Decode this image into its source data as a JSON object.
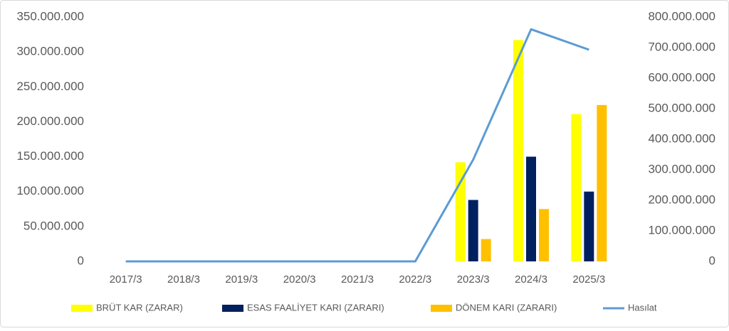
{
  "chart_data": {
    "type": "bar",
    "categories": [
      "2017/3",
      "2018/3",
      "2019/3",
      "2020/3",
      "2021/3",
      "2022/3",
      "2023/3",
      "2024/3",
      "2025/3"
    ],
    "series": [
      {
        "name": "BRÜT KAR (ZARAR)",
        "color": "#ffff00",
        "values": [
          0,
          0,
          0,
          0,
          0,
          0,
          142000000,
          317000000,
          211000000
        ]
      },
      {
        "name": "ESAS FAALİYET KARI (ZARARI)",
        "color": "#002060",
        "values": [
          0,
          0,
          0,
          0,
          0,
          0,
          88000000,
          150000000,
          100000000
        ]
      },
      {
        "name": "DÖNEM KARI (ZARARI)",
        "color": "#ffc000",
        "values": [
          0,
          0,
          0,
          0,
          0,
          0,
          32000000,
          75000000,
          224000000
        ]
      },
      {
        "name": "Hasılat",
        "color": "#5b9bd5",
        "type": "line",
        "axis": "y2",
        "values": [
          0,
          0,
          0,
          0,
          0,
          0,
          333000000,
          760000000,
          693000000
        ]
      }
    ],
    "ylim": [
      0,
      350000000
    ],
    "yticks": [
      0,
      {
        "value": 50000000,
        "label": "50.000.000"
      },
      {
        "value": 100000000,
        "label": "100.000.000"
      },
      {
        "value": 150000000,
        "label": "150.000.000"
      },
      {
        "value": 200000000,
        "label": "200.000.000"
      },
      {
        "value": 250000000,
        "label": "250.000.000"
      },
      {
        "value": 300000000,
        "label": "300.000.000"
      },
      {
        "value": 350000000,
        "label": "350.000.000"
      }
    ],
    "y2lim": [
      0,
      800000000
    ],
    "y2ticks": [
      0,
      {
        "value": 100000000,
        "label": "100.000.000"
      },
      {
        "value": 200000000,
        "label": "200.000.000"
      },
      {
        "value": 300000000,
        "label": "300.000.000"
      },
      {
        "value": 400000000,
        "label": "400.000.000"
      },
      {
        "value": 500000000,
        "label": "500.000.000"
      },
      {
        "value": 600000000,
        "label": "600.000.000"
      },
      {
        "value": 700000000,
        "label": "700.000.000"
      },
      {
        "value": 800000000,
        "label": "800.000.000"
      }
    ],
    "grid": false
  }
}
